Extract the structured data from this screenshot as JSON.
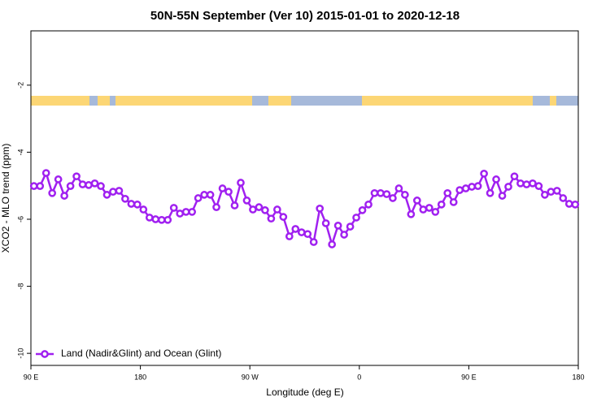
{
  "chart_data": {
    "type": "line",
    "title": "50N-55N September (Ver 10)   2015-01-01 to 2020-12-18",
    "x_label": "Longitude (deg E)",
    "y_label": "XCO2 - MLO trend (ppm)",
    "xlim": [
      90,
      540
    ],
    "ylim": [
      -10.36,
      -0.38
    ],
    "xticks": [
      {
        "value": 90,
        "label": "90 E"
      },
      180,
      {
        "value": 270,
        "label": "90 W"
      },
      {
        "value": 360,
        "label": "0"
      },
      {
        "value": 450,
        "label": "90 E"
      },
      {
        "value": 540,
        "label": "180"
      }
    ],
    "yticks": [
      -2,
      -4,
      -6,
      -8,
      -10
    ],
    "legend": "bottom-left",
    "x": [
      92.5,
      97.5,
      102.5,
      107.5,
      112.5,
      117.5,
      122.5,
      127.5,
      132.5,
      137.5,
      142.5,
      147.5,
      152.5,
      157.5,
      162.5,
      167.5,
      172.5,
      177.5,
      182.5,
      187.5,
      192.5,
      197.5,
      202.5,
      207.5,
      212.5,
      217.5,
      222.5,
      227.5,
      232.5,
      237.5,
      242.5,
      247.5,
      252.5,
      257.5,
      262.5,
      267.5,
      272.5,
      277.5,
      282.5,
      287.5,
      292.5,
      297.5,
      302.5,
      307.5,
      312.5,
      317.5,
      322.5,
      327.5,
      332.5,
      337.5,
      342.5,
      347.5,
      352.5,
      357.5,
      362.5,
      367.5,
      372.5,
      377.5,
      382.5,
      387.5,
      392.5,
      397.5,
      402.5,
      407.5,
      412.5,
      417.5,
      422.5,
      427.5,
      432.5,
      437.5,
      442.5,
      447.5,
      452.5,
      457.5,
      462.5,
      467.5,
      472.5,
      477.5,
      482.5,
      487.5,
      492.5,
      497.5,
      502.5,
      507.5,
      512.5,
      517.5,
      522.5,
      527.5,
      532.5,
      537.5
    ],
    "series": [
      {
        "name": "Land (Nadir&Glint) and Ocean (Glint)",
        "color": "#a020f0",
        "values": [
          -5.01,
          -5.01,
          -4.62,
          -5.22,
          -4.81,
          -5.3,
          -5.01,
          -4.72,
          -4.96,
          -4.98,
          -4.93,
          -5.01,
          -5.27,
          -5.18,
          -5.15,
          -5.39,
          -5.54,
          -5.56,
          -5.71,
          -5.95,
          -6.0,
          -6.02,
          -6.02,
          -5.66,
          -5.83,
          -5.78,
          -5.78,
          -5.37,
          -5.27,
          -5.27,
          -5.64,
          -5.08,
          -5.18,
          -5.59,
          -4.91,
          -5.44,
          -5.71,
          -5.64,
          -5.73,
          -5.98,
          -5.71,
          -5.93,
          -6.51,
          -6.29,
          -6.39,
          -6.44,
          -6.68,
          -5.68,
          -6.12,
          -6.75,
          -6.19,
          -6.46,
          -6.22,
          -5.95,
          -5.73,
          -5.56,
          -5.22,
          -5.22,
          -5.25,
          -5.37,
          -5.08,
          -5.27,
          -5.85,
          -5.44,
          -5.71,
          -5.66,
          -5.78,
          -5.56,
          -5.22,
          -5.49,
          -5.13,
          -5.08,
          -5.03,
          -5.01,
          -4.64,
          -5.22,
          -4.81,
          -5.3,
          -5.03,
          -4.72,
          -4.93,
          -4.96,
          -4.93,
          -5.01,
          -5.27,
          -5.18,
          -5.15,
          -5.37,
          -5.54,
          -5.56
        ]
      }
    ]
  }
}
